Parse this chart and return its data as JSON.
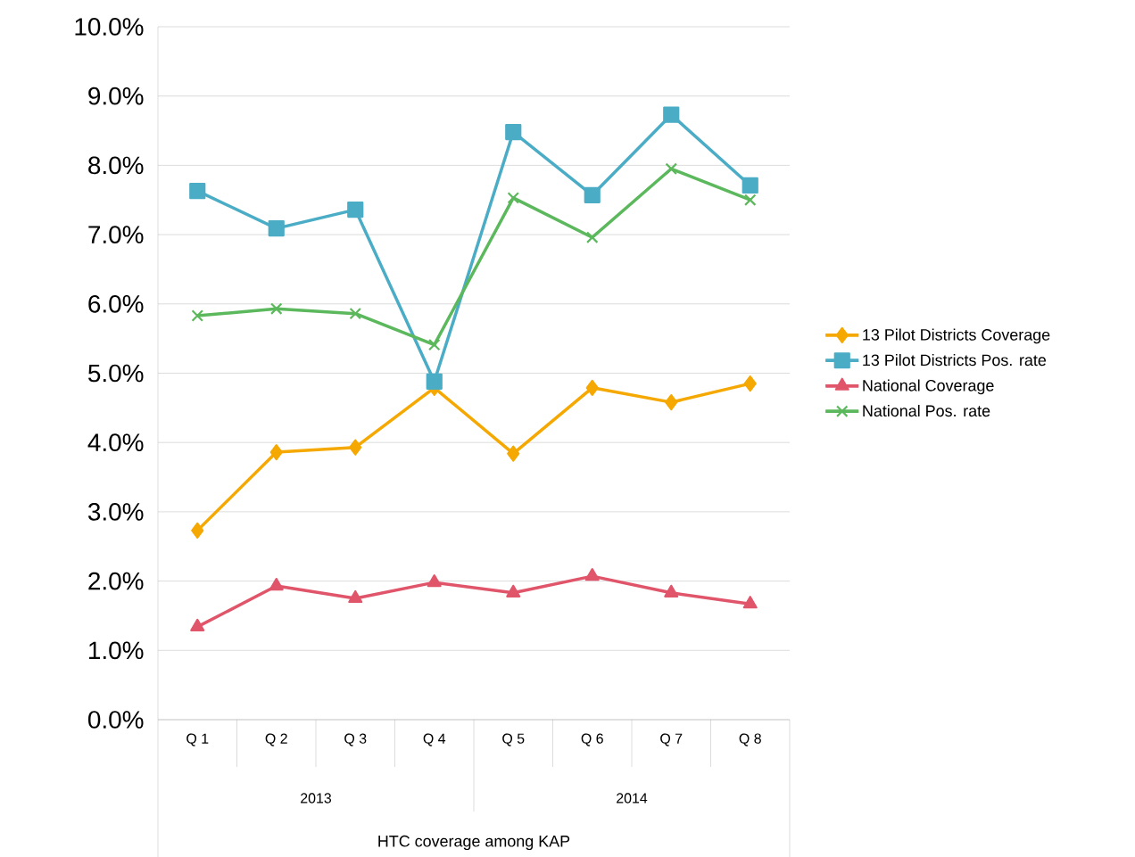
{
  "chart_data": {
    "type": "line",
    "categories": [
      "Q 1",
      "Q 2",
      "Q 3",
      "Q 4",
      "Q 5",
      "Q 6",
      "Q 7",
      "Q 8"
    ],
    "annotations": [
      "2013",
      "2014",
      "HTC coverage among KAP"
    ],
    "ylim": [
      0,
      10
    ],
    "yticks": [
      {
        "value": 0,
        "label": "0.0%"
      },
      {
        "value": 1,
        "label": "1.0%"
      },
      {
        "value": 2,
        "label": "2.0%"
      },
      {
        "value": 3,
        "label": "3.0%"
      },
      {
        "value": 4,
        "label": "4.0%"
      },
      {
        "value": 5,
        "label": "5.0%"
      },
      {
        "value": 6,
        "label": "6.0%"
      },
      {
        "value": 7,
        "label": "7.0%"
      },
      {
        "value": 8,
        "label": "8.0%"
      },
      {
        "value": 9,
        "label": "9.0%"
      },
      {
        "value": 10,
        "label": "10.0%"
      }
    ],
    "grid": "y",
    "legend": "right",
    "line_style": "solid",
    "series": [
      {
        "name": "13 Pilot Districts Coverage",
        "color": "#f5a800",
        "marker": "diamond",
        "values": [
          2.73,
          3.86,
          3.93,
          4.79,
          3.84,
          4.79,
          4.58,
          4.85
        ]
      },
      {
        "name": "13 Pilot Districts Pos. rate",
        "color": "#4bacc6",
        "marker": "square",
        "values": [
          7.63,
          7.09,
          7.36,
          4.88,
          8.48,
          7.57,
          8.73,
          7.71
        ]
      },
      {
        "name": "National Coverage",
        "color": "#e0556a",
        "marker": "triangle",
        "values": [
          1.34,
          1.93,
          1.75,
          1.98,
          1.83,
          2.07,
          1.83,
          1.67
        ]
      },
      {
        "name": "National Pos. rate",
        "color": "#5cb85c",
        "marker": "cross",
        "values": [
          5.83,
          5.93,
          5.86,
          5.41,
          7.53,
          6.96,
          7.95,
          7.5
        ]
      }
    ]
  }
}
